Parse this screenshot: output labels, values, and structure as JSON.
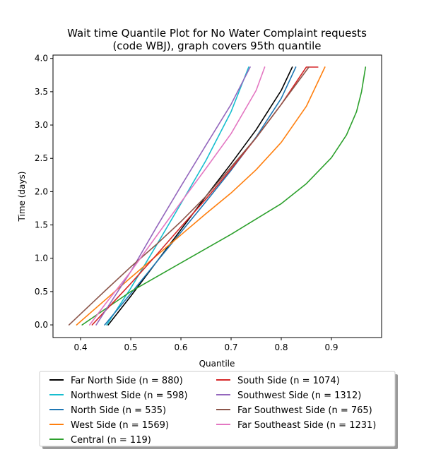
{
  "chart_data": {
    "type": "line",
    "title_lines": [
      "Wait time Quantile Plot for No Water Complaint  requests",
      "(code WBJ), graph covers 95th quantile"
    ],
    "xlabel": "Quantile",
    "ylabel": "Time (days)",
    "xlim": [
      0.345,
      1.0
    ],
    "ylim": [
      -0.19,
      4.05
    ],
    "xticks": [
      "0.4",
      "0.5",
      "0.6",
      "0.7",
      "0.8",
      "0.9"
    ],
    "yticks": [
      "0.0",
      "0.5",
      "1.0",
      "1.5",
      "2.0",
      "2.5",
      "3.0",
      "3.5",
      "4.0"
    ],
    "grid": false,
    "legend_position": "below",
    "series": [
      {
        "name": "Far North Side (n = 880)",
        "color": "#000000",
        "x": [
          0.455,
          0.5,
          0.55,
          0.6,
          0.65,
          0.7,
          0.75,
          0.8,
          0.822
        ],
        "y": [
          0.0,
          0.43,
          0.93,
          1.43,
          1.93,
          2.42,
          2.93,
          3.52,
          3.87
        ]
      },
      {
        "name": "Northwest Side (n = 598)",
        "color": "#17becf",
        "x": [
          0.452,
          0.5,
          0.55,
          0.6,
          0.65,
          0.7,
          0.735
        ],
        "y": [
          0.0,
          0.55,
          1.18,
          1.82,
          2.47,
          3.2,
          3.87
        ]
      },
      {
        "name": "North Side (n = 535)",
        "color": "#1f77b4",
        "x": [
          0.448,
          0.5,
          0.55,
          0.6,
          0.65,
          0.7,
          0.75,
          0.8,
          0.829
        ],
        "y": [
          0.0,
          0.47,
          0.93,
          1.39,
          1.85,
          2.32,
          2.82,
          3.4,
          3.87
        ]
      },
      {
        "name": "West Side (n = 1569)",
        "color": "#ff7f0e",
        "x": [
          0.392,
          0.45,
          0.5,
          0.55,
          0.6,
          0.65,
          0.7,
          0.75,
          0.8,
          0.85,
          0.887
        ],
        "y": [
          0.0,
          0.38,
          0.71,
          1.03,
          1.35,
          1.67,
          1.98,
          2.33,
          2.74,
          3.28,
          3.87
        ]
      },
      {
        "name": "Central (n = 119)",
        "color": "#2ca02c",
        "x": [
          0.403,
          0.5,
          0.6,
          0.7,
          0.8,
          0.85,
          0.9,
          0.93,
          0.95,
          0.96,
          0.968
        ],
        "y": [
          0.0,
          0.5,
          0.93,
          1.36,
          1.82,
          2.12,
          2.51,
          2.85,
          3.2,
          3.5,
          3.87
        ]
      },
      {
        "name": "South Side (n = 1074)",
        "color": "#d62728",
        "x": [
          0.423,
          0.5,
          0.55,
          0.6,
          0.65,
          0.7,
          0.75,
          0.8,
          0.85,
          0.873
        ],
        "y": [
          0.0,
          0.62,
          1.04,
          1.47,
          1.89,
          2.34,
          2.81,
          3.31,
          3.87,
          3.87
        ]
      },
      {
        "name": "Southwest Side (n = 1312)",
        "color": "#9467bd",
        "x": [
          0.431,
          0.5,
          0.55,
          0.6,
          0.65,
          0.7,
          0.738
        ],
        "y": [
          0.0,
          0.8,
          1.45,
          2.08,
          2.7,
          3.31,
          3.87
        ]
      },
      {
        "name": "Far Southwest Side (n = 765)",
        "color": "#8c564b",
        "x": [
          0.377,
          0.45,
          0.5,
          0.55,
          0.6,
          0.65,
          0.7,
          0.75,
          0.8,
          0.855
        ],
        "y": [
          0.0,
          0.52,
          0.87,
          1.2,
          1.55,
          1.93,
          2.37,
          2.81,
          3.31,
          3.87
        ]
      },
      {
        "name": "Far Southeast Side (n = 1231)",
        "color": "#e377c2",
        "x": [
          0.418,
          0.45,
          0.5,
          0.55,
          0.6,
          0.65,
          0.7,
          0.75,
          0.767
        ],
        "y": [
          0.0,
          0.32,
          0.8,
          1.32,
          1.84,
          2.35,
          2.87,
          3.52,
          3.87
        ]
      }
    ]
  }
}
